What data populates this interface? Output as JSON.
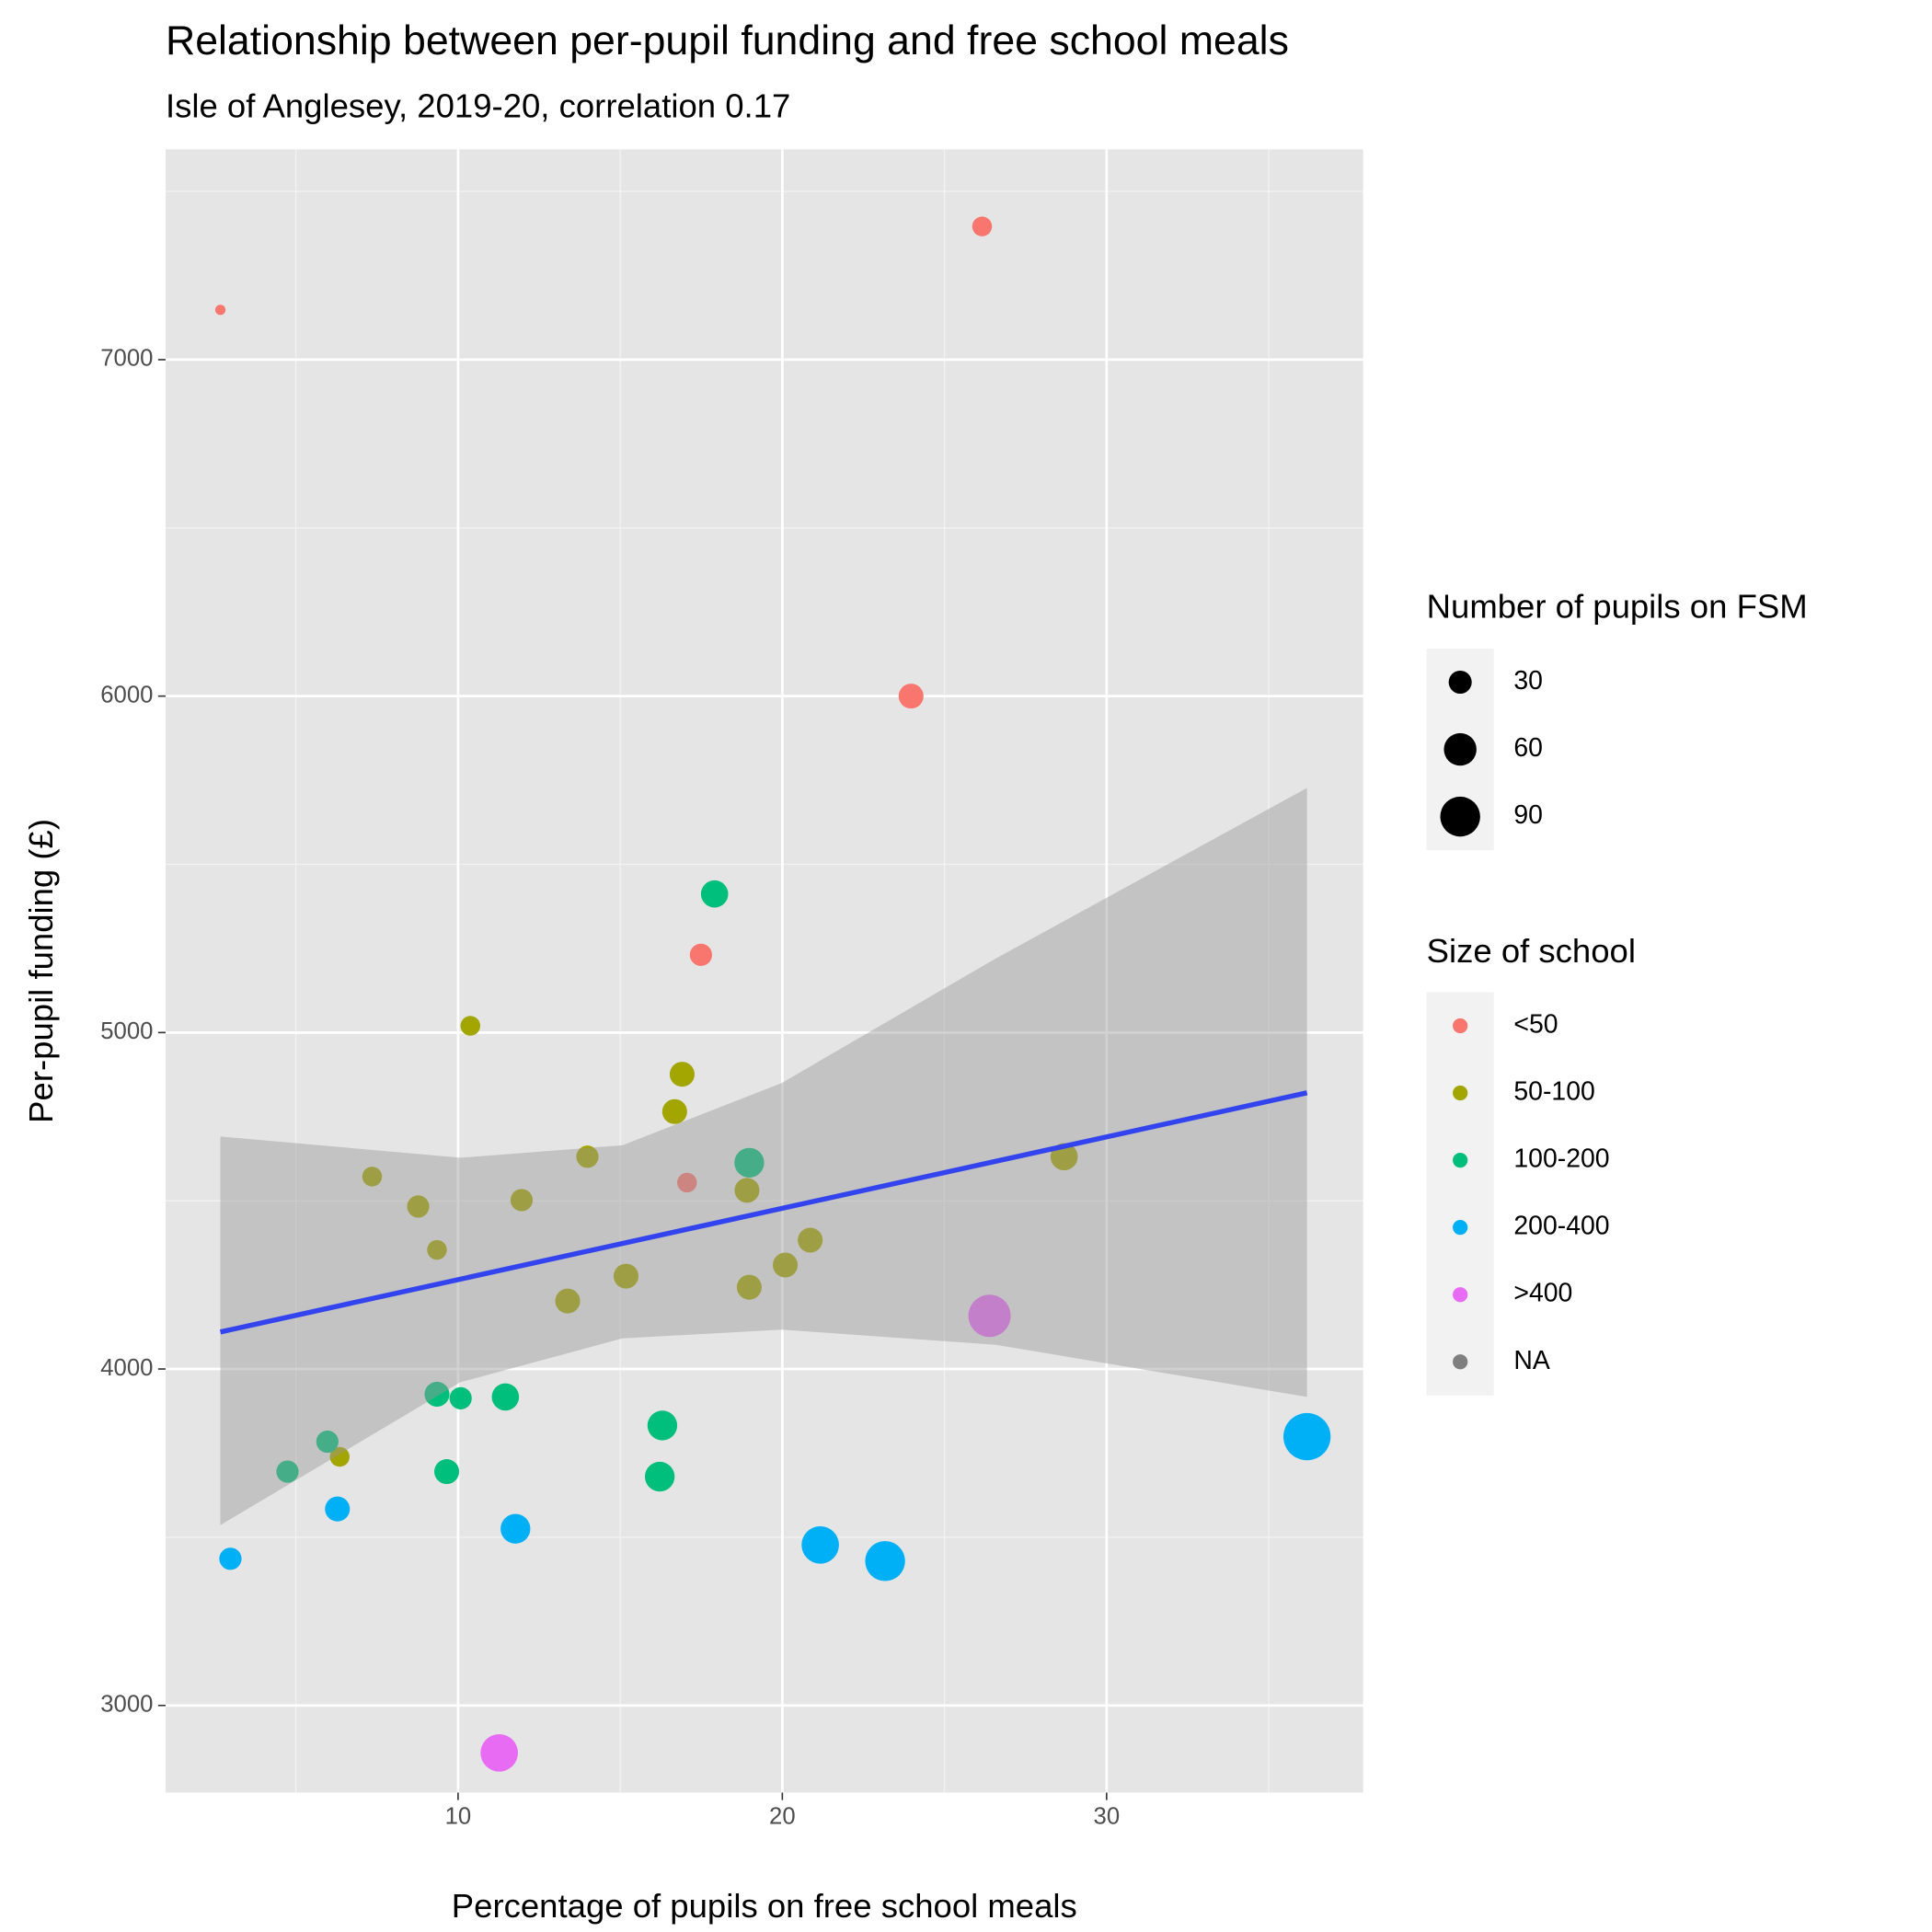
{
  "chart_data": {
    "type": "scatter",
    "title": "Relationship between per-pupil funding and free school meals",
    "subtitle": "Isle of Anglesey, 2019-20, correlation 0.17",
    "x_label": "Percentage of pupils on free school meals",
    "y_label": "Per-pupil funding (£)",
    "xlim": [
      0.98,
      37.91
    ],
    "ylim": [
      2741,
      7625
    ],
    "xticks": [
      10,
      20,
      30
    ],
    "yticks": [
      3000,
      4000,
      5000,
      6000,
      7000
    ],
    "x_minor_ticks": [
      5,
      15,
      25,
      35
    ],
    "y_minor_ticks": [
      3500,
      4500,
      5500,
      6500,
      7500
    ],
    "grid": true,
    "legend_position": "right",
    "size_legend": {
      "title": "Number of pupils on FSM",
      "values": [
        30,
        60,
        90
      ]
    },
    "color_legend_title": "Size of school",
    "series": [
      {
        "name": "<50",
        "color": "#F8766D",
        "x": [
          2.67,
          26.16,
          23.97,
          17.49,
          17.06
        ],
        "y": [
          7148,
          7396,
          6000,
          5231,
          4554
        ],
        "size": [
          6,
          22,
          35,
          28,
          22
        ]
      },
      {
        "name": "50-100",
        "color": "#A3A500",
        "x": [
          10.38,
          16.91,
          16.68,
          13.99,
          28.69,
          7.35,
          8.77,
          11.96,
          18.91,
          9.35,
          20.86,
          15.18,
          20.09,
          18.98,
          13.38,
          6.35
        ],
        "y": [
          5020,
          4876,
          4765,
          4631,
          4631,
          4572,
          4483,
          4502,
          4531,
          4354,
          4383,
          4276,
          4309,
          4243,
          4202,
          3739
        ],
        "size": [
          22,
          35,
          35,
          28,
          42,
          22,
          28,
          28,
          35,
          22,
          35,
          35,
          35,
          35,
          35,
          22
        ]
      },
      {
        "name": "100-200",
        "color": "#00BF7D",
        "x": [
          17.91,
          18.98,
          9.35,
          10.08,
          11.46,
          16.3,
          5.97,
          4.74,
          9.65,
          16.22
        ],
        "y": [
          5412,
          4613,
          3925,
          3913,
          3917,
          3832,
          3784,
          3695,
          3695,
          3680
        ],
        "size": [
          42,
          50,
          35,
          28,
          42,
          50,
          28,
          28,
          35,
          50
        ]
      },
      {
        "name": "200-400",
        "color": "#00B0F6",
        "x": [
          6.28,
          11.77,
          2.98,
          21.17,
          23.17,
          36.18
        ],
        "y": [
          3584,
          3525,
          3436,
          3477,
          3429,
          3799
        ],
        "size": [
          35,
          50,
          28,
          79,
          90,
          126
        ]
      },
      {
        "name": ">400",
        "color": "#E76BF3",
        "x": [
          26.39,
          11.27
        ],
        "y": [
          4158,
          2859
        ],
        "size": [
          101,
          79
        ]
      },
      {
        "name": "NA",
        "color": "#7F7F7F",
        "x": [],
        "y": [],
        "size": []
      }
    ],
    "trend": {
      "color": "#3344EE",
      "x": [
        2.67,
        36.18
      ],
      "y": [
        4110,
        4821
      ]
    },
    "band": {
      "x": [
        2.67,
        10.08,
        15.07,
        19.98,
        26.58,
        36.18
      ],
      "upper": [
        4691,
        4628,
        4665,
        4850,
        5220,
        5727
      ],
      "lower": [
        3536,
        3961,
        4091,
        4117,
        4072,
        3917
      ]
    }
  }
}
